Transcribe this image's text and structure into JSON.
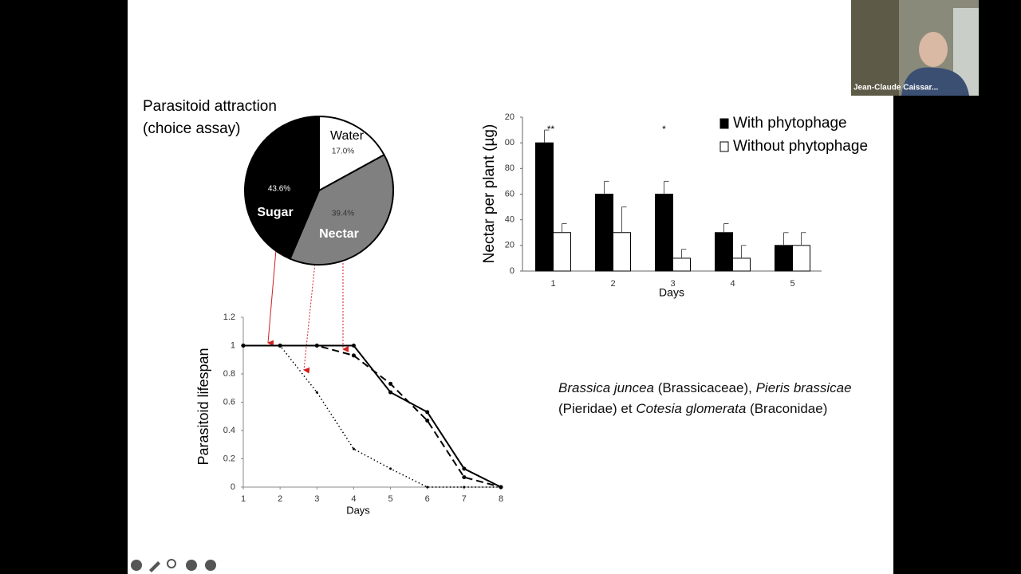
{
  "chart_data": [
    {
      "type": "pie",
      "title": "Parasitoid attraction",
      "subtitle": "(choice assay)",
      "categories": [
        "Water",
        "Nectar",
        "Sugar"
      ],
      "values": [
        17.0,
        39.4,
        43.6
      ],
      "value_labels": [
        "17.0%",
        "39.4%",
        "43.6%"
      ],
      "colors": [
        "#ffffff",
        "#808080",
        "#000000"
      ]
    },
    {
      "type": "bar",
      "y_label": "Nectar per plant (µg)",
      "x_label": "Days",
      "categories": [
        "1",
        "2",
        "3",
        "4",
        "5"
      ],
      "series": [
        {
          "name": "With phytophage",
          "color": "#000000",
          "values": [
            100,
            60,
            60,
            30,
            20
          ],
          "errors": [
            10,
            10,
            10,
            7,
            10
          ]
        },
        {
          "name": "Without phytophage",
          "color": "#ffffff",
          "values": [
            30,
            30,
            10,
            10,
            20
          ],
          "errors": [
            7,
            20,
            7,
            10,
            10
          ]
        }
      ],
      "annotations": [
        "**",
        null,
        "*",
        null,
        null
      ],
      "ylim": [
        0,
        120
      ],
      "yticks": [
        0,
        20,
        40,
        60,
        80,
        {
          "value": 100,
          "label": "00"
        },
        {
          "value": 120,
          "label": "20"
        }
      ],
      "legend": "top-right"
    },
    {
      "type": "line",
      "y_label": "Parasitoid lifespan",
      "x_label": "Days",
      "x": [
        1,
        2,
        3,
        4,
        5,
        6,
        7,
        8
      ],
      "series": [
        {
          "color": "#000000",
          "dash": "solid",
          "values": [
            1,
            1,
            1,
            1,
            0.67,
            0.53,
            0.13,
            0
          ]
        },
        {
          "color": "#000000",
          "dash": "dashed",
          "values": [
            1,
            1,
            1,
            0.93,
            0.73,
            0.47,
            0.07,
            0
          ]
        },
        {
          "color": "#000000",
          "dash": "dotted",
          "values": [
            1,
            1,
            0.67,
            0.27,
            0.13,
            0,
            0,
            0
          ]
        }
      ],
      "xlim": [
        1,
        8
      ],
      "xticks": [
        1,
        2,
        3,
        4,
        5,
        6,
        7,
        8
      ],
      "ylim": [
        0,
        1.2
      ],
      "yticks": [
        0,
        0.2,
        0.4,
        0.6,
        0.8,
        1,
        1.2
      ]
    }
  ],
  "caption": [
    "Brassica juncea",
    "(Brassicaceae),",
    "Pieris brassicae",
    "(Pieridae) et",
    "Cotesia glomerata",
    "(Braconidae)"
  ],
  "video": {
    "participant": "Jean-Claude Caissar..."
  }
}
